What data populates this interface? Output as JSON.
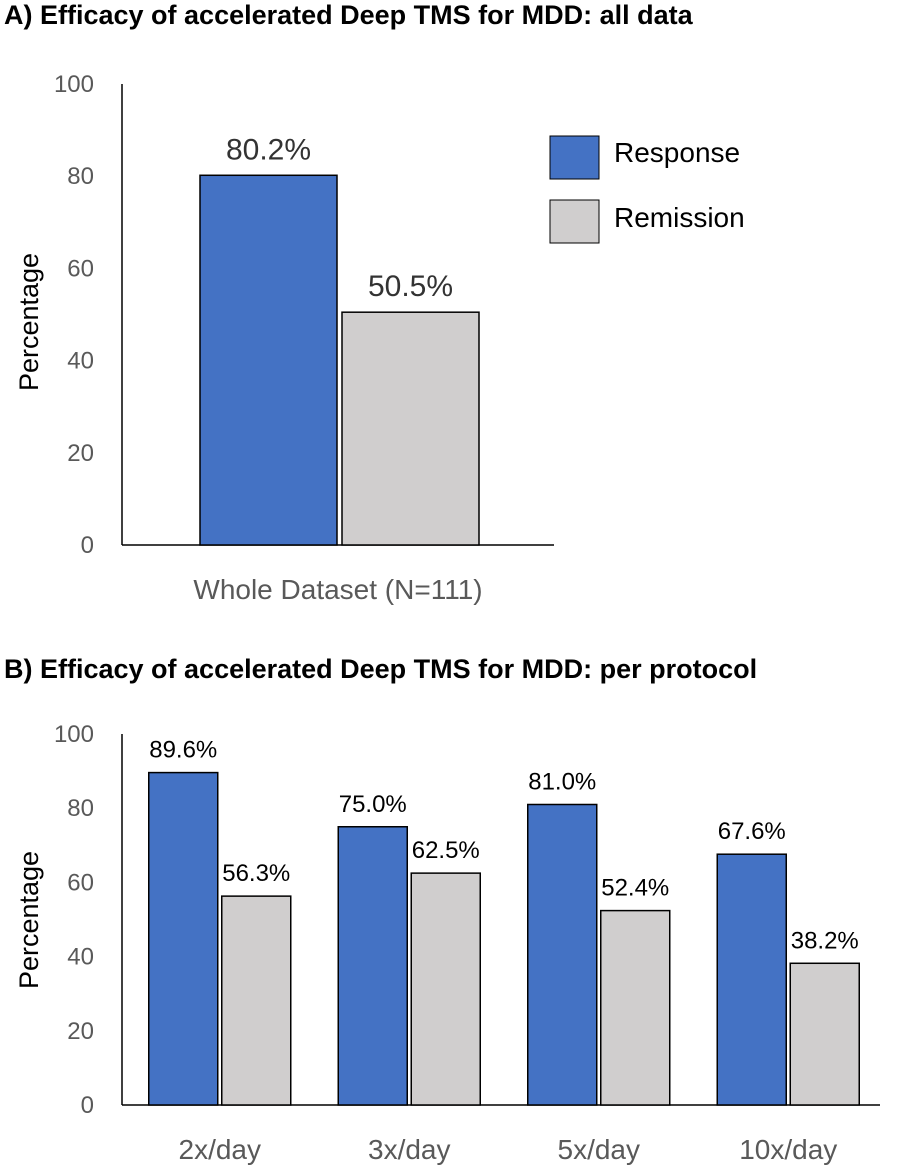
{
  "colors": {
    "response": "#4472c4",
    "remission": "#d0cece",
    "stroke": "#000000",
    "axis": "#000000"
  },
  "chart_data": [
    {
      "type": "bar",
      "title": "A) Efficacy of accelerated Deep TMS for MDD: all data",
      "ylabel": "Percentage",
      "xlabel": "",
      "ylim": [
        0,
        100
      ],
      "yticks": [
        0,
        20,
        40,
        60,
        80,
        100
      ],
      "categories": [
        "Whole Dataset (N=111)"
      ],
      "series": [
        {
          "name": "Response",
          "values": [
            80.2
          ],
          "labels": [
            "80.2%"
          ]
        },
        {
          "name": "Remission",
          "values": [
            50.5
          ],
          "labels": [
            "50.5%"
          ]
        }
      ],
      "legend": "top-right",
      "grid": false
    },
    {
      "type": "bar",
      "title": "B) Efficacy of accelerated Deep TMS for MDD: per protocol",
      "ylabel": "Percentage",
      "xlabel": "",
      "ylim": [
        0,
        100
      ],
      "yticks": [
        0,
        20,
        40,
        60,
        80,
        100
      ],
      "categories": [
        "2x/day",
        "3x/day",
        "5x/day",
        "10x/day"
      ],
      "series": [
        {
          "name": "Response",
          "values": [
            89.6,
            75.0,
            81.0,
            67.6
          ],
          "labels": [
            "89.6%",
            "75.0%",
            "81.0%",
            "67.6%"
          ]
        },
        {
          "name": "Remission",
          "values": [
            56.3,
            62.5,
            52.4,
            38.2
          ],
          "labels": [
            "56.3%",
            "62.5%",
            "52.4%",
            "38.2%"
          ]
        }
      ],
      "legend": "none",
      "grid": false
    }
  ]
}
